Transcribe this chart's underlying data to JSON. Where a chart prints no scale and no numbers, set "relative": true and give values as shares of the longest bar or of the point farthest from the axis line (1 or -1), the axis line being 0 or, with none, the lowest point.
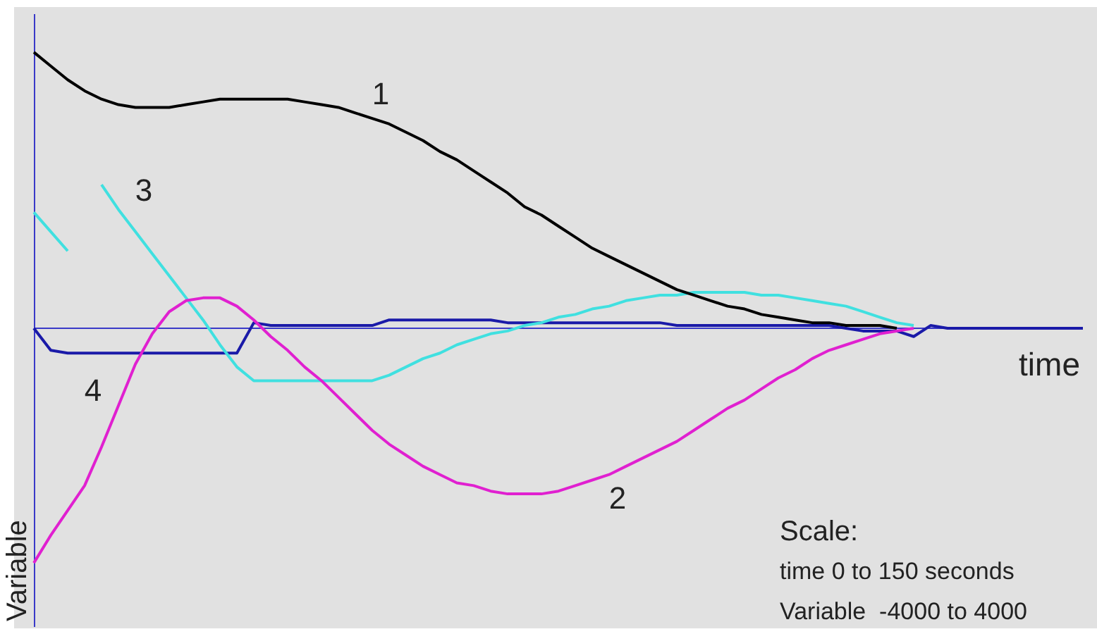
{
  "chart_data": {
    "type": "line",
    "relative": true,
    "xlabel": "time",
    "ylabel": "Variable",
    "legend": false,
    "marker": "none",
    "ref_lines": [
      {
        "axis": "y",
        "value": 0,
        "color": "#3a3ac8"
      }
    ],
    "categories": [
      null,
      null,
      null,
      null,
      null,
      null,
      null,
      null,
      null,
      null,
      null,
      null,
      null,
      null,
      null,
      null,
      null,
      null,
      null,
      null,
      null,
      null,
      null,
      null,
      null,
      null,
      null,
      null,
      null,
      null,
      null,
      null,
      null,
      null,
      null,
      null,
      null,
      null,
      null,
      null,
      null,
      null,
      null,
      null,
      null,
      null,
      null,
      null,
      null,
      null,
      null,
      null,
      null,
      null,
      null,
      null,
      null,
      null,
      null,
      null,
      null,
      null,
      null
    ],
    "series": [
      {
        "name": "1",
        "color": "#000000",
        "values": [
          1.0,
          0.95,
          0.9,
          0.86,
          0.83,
          0.81,
          0.8,
          0.8,
          0.8,
          0.81,
          0.82,
          0.83,
          0.83,
          0.83,
          0.83,
          0.83,
          0.82,
          0.81,
          0.8,
          0.78,
          0.76,
          0.74,
          0.71,
          0.68,
          0.64,
          0.61,
          0.57,
          0.53,
          0.49,
          0.44,
          0.41,
          0.37,
          0.33,
          0.29,
          0.26,
          0.23,
          0.2,
          0.17,
          0.14,
          0.12,
          0.1,
          0.08,
          0.07,
          0.05,
          0.04,
          0.03,
          0.02,
          0.02,
          0.01,
          0.01,
          0.01,
          0,
          null,
          null,
          null,
          null,
          null,
          null,
          null,
          null,
          null,
          null,
          null
        ]
      },
      {
        "name": "2",
        "color": "#e020d0",
        "values": [
          -0.85,
          -0.75,
          -0.66,
          -0.57,
          -0.43,
          -0.28,
          -0.13,
          -0.02,
          0.06,
          0.1,
          0.11,
          0.11,
          0.08,
          0.03,
          -0.03,
          -0.08,
          -0.14,
          -0.19,
          -0.25,
          -0.31,
          -0.37,
          -0.42,
          -0.46,
          -0.5,
          -0.53,
          -0.56,
          -0.57,
          -0.59,
          -0.6,
          -0.6,
          -0.6,
          -0.59,
          -0.57,
          -0.55,
          -0.53,
          -0.5,
          -0.47,
          -0.44,
          -0.41,
          -0.37,
          -0.33,
          -0.29,
          -0.26,
          -0.22,
          -0.18,
          -0.15,
          -0.11,
          -0.08,
          -0.06,
          -0.04,
          -0.02,
          -0.01,
          0,
          null,
          null,
          null,
          null,
          null,
          null,
          null,
          null,
          null,
          null
        ]
      },
      {
        "name": "3",
        "color": "#40e0e0",
        "values": [
          0.42,
          0.35,
          0.28,
          null,
          0.52,
          0.43,
          0.35,
          0.27,
          0.19,
          0.11,
          0.03,
          -0.06,
          -0.14,
          -0.19,
          -0.19,
          -0.19,
          -0.19,
          -0.19,
          -0.19,
          -0.19,
          -0.19,
          -0.17,
          -0.14,
          -0.11,
          -0.09,
          -0.06,
          -0.04,
          -0.02,
          -0.01,
          0.01,
          0.02,
          0.04,
          0.05,
          0.07,
          0.08,
          0.1,
          0.11,
          0.12,
          0.12,
          0.13,
          0.13,
          0.13,
          0.13,
          0.12,
          0.12,
          0.11,
          0.1,
          0.09,
          0.08,
          0.06,
          0.04,
          0.02,
          0.01,
          null,
          null,
          null,
          null,
          null,
          null,
          null,
          null,
          null,
          null
        ]
      },
      {
        "name": "4",
        "color": "#1a1aa8",
        "values": [
          0,
          -0.08,
          -0.09,
          -0.09,
          -0.09,
          -0.09,
          -0.09,
          -0.09,
          -0.09,
          -0.09,
          -0.09,
          -0.09,
          -0.09,
          0.02,
          0.01,
          0.01,
          0.01,
          0.01,
          0.01,
          0.01,
          0.01,
          0.03,
          0.03,
          0.03,
          0.03,
          0.03,
          0.03,
          0.03,
          0.02,
          0.02,
          0.02,
          0.02,
          0.02,
          0.02,
          0.02,
          0.02,
          0.02,
          0.02,
          0.01,
          0.01,
          0.01,
          0.01,
          0.01,
          0.01,
          0.01,
          0.01,
          0.01,
          0.01,
          0,
          -0.01,
          -0.01,
          -0.01,
          -0.03,
          0.01,
          0,
          0,
          0,
          0,
          0,
          0,
          0,
          0,
          0
        ]
      }
    ],
    "annotations": [
      "Scale:",
      "time 0 to 150 seconds",
      "Variable  -4000 to 4000"
    ]
  }
}
